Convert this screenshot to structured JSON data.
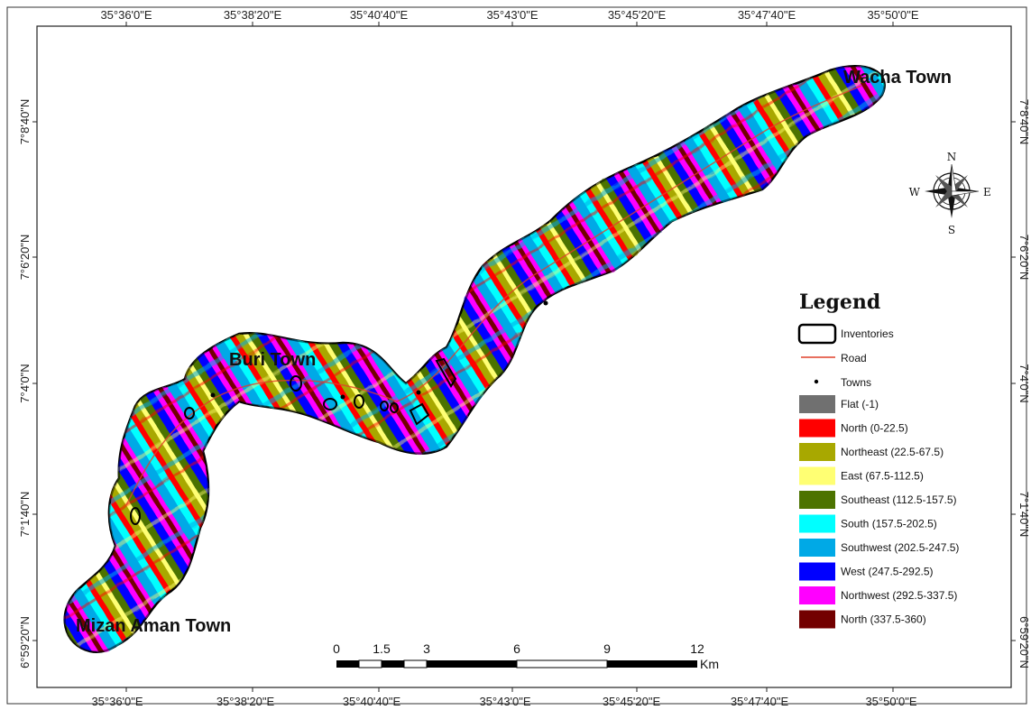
{
  "coordinates": {
    "top": [
      "35°36'0\"E",
      "35°38'20\"E",
      "35°40'40\"E",
      "35°43'0\"E",
      "35°45'20\"E",
      "35°47'40\"E",
      "35°50'0\"E"
    ],
    "bottom": [
      "35°36'0\"E",
      "35°38'20\"E",
      "35°40'40\"E",
      "35°43'0\"E",
      "35°45'20\"E",
      "35°47'40\"E",
      "35°50'0\"E"
    ],
    "left": [
      "7°8'40\"N",
      "7°6'20\"N",
      "7°4'0\"N",
      "7°1'40\"N",
      "6°59'20\"N"
    ],
    "right": [
      "7°8'40\"N",
      "7°6'20\"N",
      "7°4'0\"N",
      "7°1'40\"N",
      "6°59'20\"N"
    ]
  },
  "towns": {
    "wacha": "Wacha Town",
    "buri": "Buri Town",
    "mizan": "Mizan Aman Town"
  },
  "compass": {
    "n": "N",
    "s": "S",
    "e": "E",
    "w": "W",
    "icon": "compass-rose-icon"
  },
  "legend": {
    "title": "Legend",
    "symbols": [
      {
        "label": "Inventories",
        "kind": "polygon-outline",
        "color": "#000000"
      },
      {
        "label": "Road",
        "kind": "line",
        "color": "#e0402a"
      },
      {
        "label": "Towns",
        "kind": "point",
        "color": "#000000"
      }
    ],
    "aspect_classes": [
      {
        "label": "Flat (-1)",
        "color": "#707070"
      },
      {
        "label": "North (0-22.5)",
        "color": "#ff0000"
      },
      {
        "label": "Northeast (22.5-67.5)",
        "color": "#a8a800"
      },
      {
        "label": "East (67.5-112.5)",
        "color": "#ffff73"
      },
      {
        "label": "Southeast (112.5-157.5)",
        "color": "#4c7300"
      },
      {
        "label": "South (157.5-202.5)",
        "color": "#00ffff"
      },
      {
        "label": "Southwest (202.5-247.5)",
        "color": "#00a9e6"
      },
      {
        "label": "West (247.5-292.5)",
        "color": "#0000ff"
      },
      {
        "label": "Northwest (292.5-337.5)",
        "color": "#ff00ff"
      },
      {
        "label": "North (337.5-360)",
        "color": "#730000"
      }
    ]
  },
  "scale_bar": {
    "ticks": [
      "0",
      "1.5",
      "3",
      "6",
      "9",
      "12"
    ],
    "unit": "Km"
  }
}
